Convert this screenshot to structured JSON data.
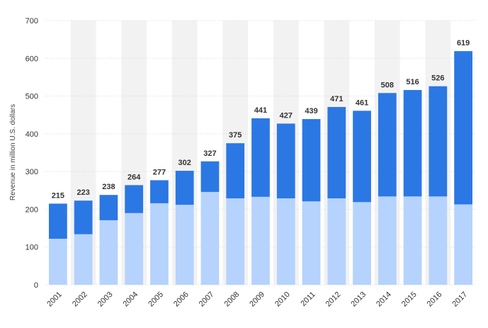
{
  "chart_data": {
    "type": "bar",
    "stacked": true,
    "categories": [
      "2001",
      "2002",
      "2003",
      "2004",
      "2005",
      "2006",
      "2007",
      "2008",
      "2009",
      "2010",
      "2011",
      "2012",
      "2013",
      "2014",
      "2015",
      "2016",
      "2017"
    ],
    "series": [
      {
        "color": "#b5d3fd",
        "values": [
          122,
          134,
          171,
          190,
          216,
          212,
          246,
          229,
          233,
          229,
          221,
          229,
          219,
          234,
          234,
          234,
          213
        ]
      },
      {
        "color": "#2b78e4",
        "values": [
          93,
          89,
          67,
          74,
          61,
          90,
          81,
          146,
          208,
          198,
          218,
          242,
          242,
          274,
          282,
          292,
          406
        ]
      }
    ],
    "totals": [
      215,
      223,
      238,
      264,
      277,
      302,
      327,
      375,
      441,
      427,
      439,
      471,
      461,
      508,
      516,
      526,
      619
    ],
    "ylabel": "Revenue in million U.S. dollars",
    "xlabel": "",
    "ylim": [
      0,
      700
    ],
    "yticks": [
      0,
      100,
      200,
      300,
      400,
      500,
      600,
      700
    ],
    "grid": true,
    "legend": "none",
    "colors": {
      "band": "#f2f2f2",
      "grid": "#d9d9d9"
    }
  }
}
